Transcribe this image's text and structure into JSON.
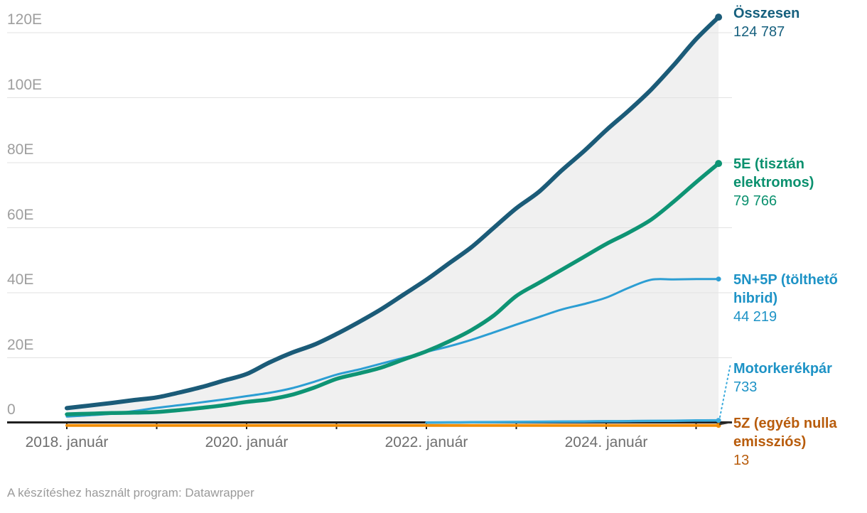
{
  "footer": {
    "credit": "A készítéshez használt program: Datawrapper"
  },
  "colors": {
    "background": "#ffffff",
    "axis": "#1f1f1f",
    "gridline": "#e2e2e2",
    "area_fill": "#f0f0f0",
    "y_tick_text": "#9e9e9e",
    "x_tick_text": "#6f6f6f",
    "footer_text": "#9a9a9a"
  },
  "chart_data": {
    "type": "line",
    "grid": true,
    "legend_position": "right-edge-labels",
    "x_axis": {
      "tick_years": [
        2018,
        2019,
        2020,
        2021,
        2022,
        2023,
        2024,
        2025
      ],
      "labeled_ticks": [
        {
          "year": 2018,
          "label": "2018. január"
        },
        {
          "year": 2020,
          "label": "2020. január"
        },
        {
          "year": 2022,
          "label": "2022. január"
        },
        {
          "year": 2024,
          "label": "2024. január"
        }
      ]
    },
    "y_axis": {
      "tick_values": [
        0,
        20000,
        40000,
        60000,
        80000,
        100000,
        120000
      ],
      "tick_labels": [
        "0",
        "20E",
        "40E",
        "60E",
        "80E",
        "100E",
        "120E"
      ],
      "ylim": [
        0,
        126000
      ]
    },
    "x": [
      "2018-01",
      "2018-04",
      "2018-07",
      "2018-10",
      "2019-01",
      "2019-04",
      "2019-07",
      "2019-10",
      "2020-01",
      "2020-04",
      "2020-07",
      "2020-10",
      "2021-01",
      "2021-04",
      "2021-07",
      "2021-10",
      "2022-01",
      "2022-04",
      "2022-07",
      "2022-10",
      "2023-01",
      "2023-04",
      "2023-07",
      "2023-10",
      "2024-01",
      "2024-04",
      "2024-07",
      "2024-10",
      "2025-01",
      "2025-04"
    ],
    "series": [
      {
        "name": "Összesen",
        "label_lines": [
          "Összesen"
        ],
        "value_label": "124 787",
        "final_value": 124787,
        "color": "#1b5b78",
        "label_color": "#16607e",
        "has_area_fill": true,
        "values": [
          4500,
          5300,
          6100,
          7000,
          7800,
          9300,
          11000,
          13000,
          15000,
          18500,
          21500,
          24000,
          27300,
          31000,
          35000,
          39500,
          44000,
          49000,
          54000,
          60000,
          66000,
          71000,
          77500,
          83500,
          90000,
          96000,
          102500,
          110000,
          118000,
          124787
        ]
      },
      {
        "name": "5E (tisztán elektromos)",
        "label_lines": [
          "5E (tisztán",
          "elektromos)"
        ],
        "value_label": "79 766",
        "final_value": 79766,
        "color": "#0e9474",
        "label_color": "#0b916f",
        "has_area_fill": false,
        "values": [
          2600,
          2800,
          3000,
          3100,
          3300,
          3900,
          4600,
          5400,
          6400,
          7200,
          8600,
          10800,
          13500,
          15200,
          17000,
          19500,
          22000,
          25000,
          28500,
          33000,
          39000,
          43000,
          47000,
          51000,
          55000,
          58500,
          62500,
          68000,
          74000,
          79766
        ]
      },
      {
        "name": "5N+5P (tölthető hibrid)",
        "label_lines": [
          "5N+5P (tölthető",
          "hibrid)"
        ],
        "value_label": "44 219",
        "final_value": 44219,
        "color": "#2c9ed3",
        "label_color": "#1e93c6",
        "has_area_fill": false,
        "values": [
          1900,
          2300,
          2800,
          3600,
          4600,
          5400,
          6300,
          7200,
          8200,
          9200,
          10600,
          12600,
          14800,
          16400,
          18200,
          20000,
          21800,
          23500,
          25500,
          27800,
          30200,
          32500,
          34800,
          36500,
          38500,
          41500,
          44000,
          44100,
          44200,
          44219
        ]
      },
      {
        "name": "Motorkerékpár",
        "label_lines": [
          "Motorkerékpár"
        ],
        "value_label": "733",
        "final_value": 733,
        "color": "#3aaadc",
        "label_color": "#1e93c6",
        "has_area_fill": false,
        "leader": "dotted",
        "values": [
          null,
          null,
          null,
          null,
          null,
          null,
          null,
          null,
          null,
          null,
          null,
          null,
          null,
          null,
          null,
          null,
          60,
          100,
          150,
          200,
          250,
          300,
          350,
          400,
          450,
          500,
          560,
          620,
          690,
          733
        ]
      },
      {
        "name": "5Z (egyéb nulla emissziós)",
        "label_lines": [
          "5Z (egyéb nulla",
          "emissziós)"
        ],
        "value_label": "13",
        "final_value": 13,
        "color": "#f28e06",
        "label_color": "#b85c0c",
        "has_area_fill": false,
        "leader": "solid-dark",
        "values": [
          2,
          2,
          3,
          3,
          4,
          4,
          5,
          5,
          6,
          6,
          7,
          7,
          8,
          8,
          9,
          9,
          10,
          10,
          11,
          11,
          12,
          12,
          12,
          12,
          13,
          13,
          13,
          13,
          13,
          13
        ]
      }
    ]
  }
}
